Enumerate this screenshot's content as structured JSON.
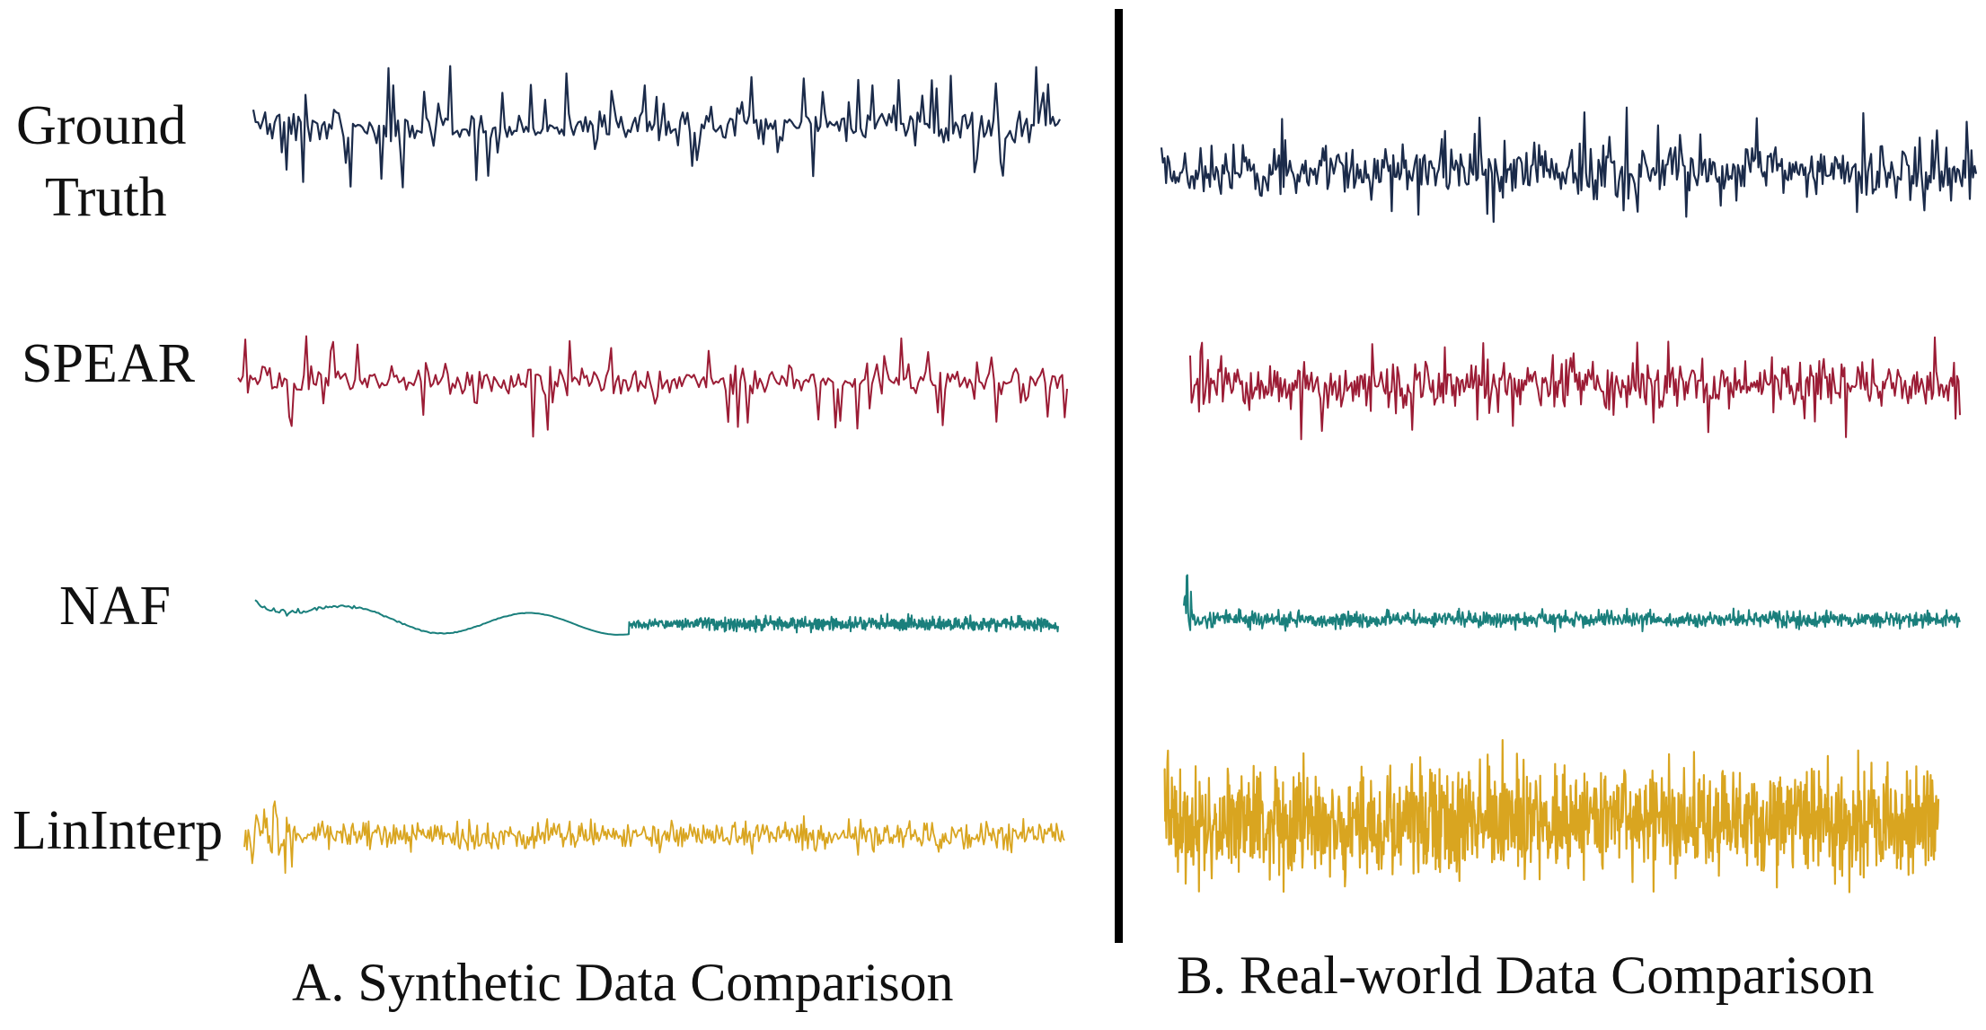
{
  "labels": {
    "ground_truth": [
      "Ground",
      "Truth"
    ],
    "spear": "SPEAR",
    "naf": "NAF",
    "lininterp": "LinInterp"
  },
  "captions": {
    "synthetic": "A. Synthetic Data Comparison",
    "real": "B. Real-world Data Comparison"
  },
  "colors": {
    "ground_truth": "#1b2b4a",
    "spear": "#9b1c35",
    "naf": "#1a7f7c",
    "lininterp": "#d9a520",
    "divider": "#000000"
  }
}
